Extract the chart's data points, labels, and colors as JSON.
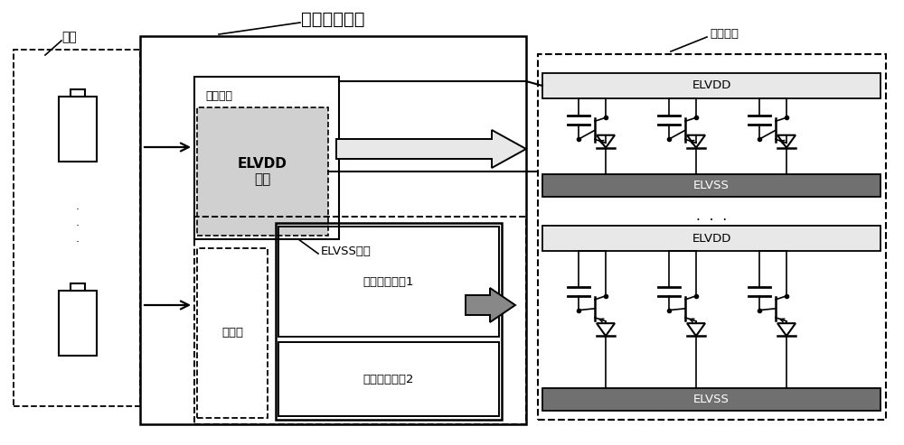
{
  "title": "电源管理模块",
  "display_label": "显示装置",
  "power_label": "电源",
  "chip_label": "电源芯片",
  "elvdd_src_label": "ELVDD\n电源",
  "elvss_label": "ELVSS电源",
  "controller_label": "控制器",
  "circuit1_label": "功率变换电路1",
  "circuit2_label": "功率变换电路2",
  "elvdd_label": "ELVDD",
  "elvss_bar_label": "ELVSS",
  "bg_color": "#ffffff",
  "dark_bar_color": "#707070",
  "light_bar_color": "#e8e8e8",
  "elvdd_src_fill": "#d0d0d0",
  "box_border": "#000000",
  "xlim": 10.0,
  "ylim": 4.93
}
